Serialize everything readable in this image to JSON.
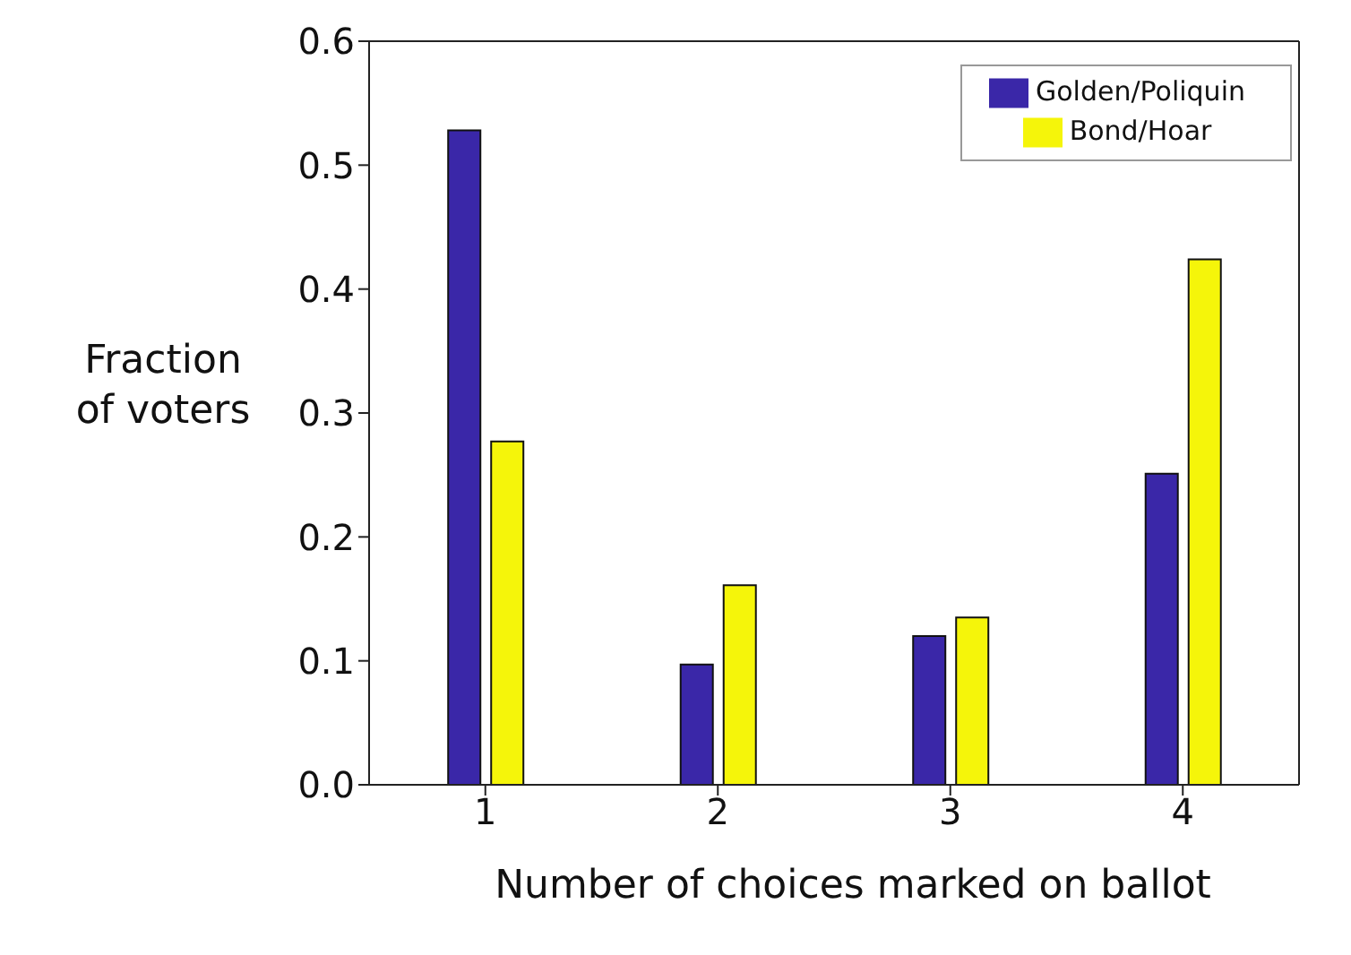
{
  "chart_data": {
    "type": "bar",
    "xlabel": "Number of choices marked on ballot",
    "ylabel": "Fraction of voters",
    "categories": [
      "1",
      "2",
      "3",
      "4"
    ],
    "series": [
      {
        "name": "Golden/Poliquin",
        "color": "#3a27a8",
        "values": [
          0.528,
          0.097,
          0.12,
          0.251
        ]
      },
      {
        "name": "Bond/Hoar",
        "color": "#f5f50a",
        "values": [
          0.277,
          0.161,
          0.135,
          0.424
        ]
      }
    ],
    "ylim": [
      0,
      0.6
    ],
    "yticks": [
      {
        "value": 0,
        "label": "0.0"
      },
      0.1,
      0.2,
      0.3,
      0.4,
      0.5,
      0.6
    ],
    "grid": false,
    "legend": "top right"
  }
}
